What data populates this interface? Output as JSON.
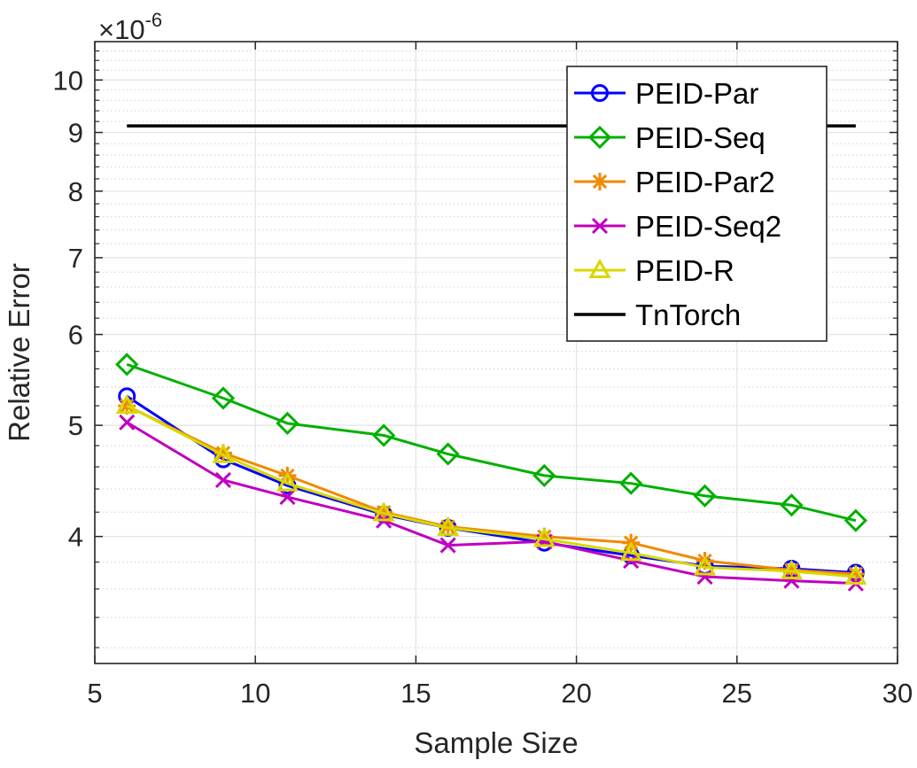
{
  "chart_data": {
    "type": "line",
    "xlabel": "Sample Size",
    "ylabel": "Relative Error",
    "yscale": "log",
    "exponent_base": "×10",
    "exponent_power": "-6",
    "xlim": [
      5,
      30
    ],
    "ylim": [
      3.1,
      10.8
    ],
    "xticks": [
      5,
      10,
      15,
      20,
      25,
      30
    ],
    "yticks": [
      4,
      5,
      6,
      7,
      8,
      9,
      10
    ],
    "grid": true,
    "legend_position": "top-right",
    "series": [
      {
        "name": "PEID-Par",
        "color": "#0000ff",
        "marker": "circle",
        "x": [
          6,
          9,
          11,
          14,
          16,
          19,
          21.7,
          24,
          26.7,
          28.7
        ],
        "y": [
          5.3,
          4.67,
          4.43,
          4.18,
          4.07,
          3.95,
          3.85,
          3.77,
          3.75,
          3.72
        ]
      },
      {
        "name": "PEID-Seq",
        "color": "#00b000",
        "marker": "diamond",
        "x": [
          6,
          9,
          11,
          14,
          16,
          19,
          21.7,
          24,
          26.7,
          28.7
        ],
        "y": [
          5.65,
          5.28,
          5.02,
          4.9,
          4.72,
          4.52,
          4.45,
          4.34,
          4.26,
          4.13
        ]
      },
      {
        "name": "PEID-Par2",
        "color": "#f08a00",
        "marker": "asterisk",
        "x": [
          6,
          9,
          11,
          14,
          16,
          19,
          21.7,
          24,
          26.7,
          28.7
        ],
        "y": [
          5.2,
          4.73,
          4.52,
          4.2,
          4.08,
          4.0,
          3.95,
          3.81,
          3.74,
          3.71
        ]
      },
      {
        "name": "PEID-Seq2",
        "color": "#c000c0",
        "marker": "x",
        "x": [
          6,
          9,
          11,
          14,
          16,
          19,
          21.7,
          24,
          26.7,
          28.7
        ],
        "y": [
          5.03,
          4.48,
          4.33,
          4.13,
          3.93,
          3.96,
          3.81,
          3.69,
          3.66,
          3.64
        ]
      },
      {
        "name": "PEID-R",
        "color": "#d8d800",
        "marker": "triangle",
        "x": [
          6,
          9,
          11,
          14,
          16,
          19,
          21.7,
          24,
          26.7,
          28.7
        ],
        "y": [
          5.2,
          4.71,
          4.45,
          4.19,
          4.07,
          3.98,
          3.87,
          3.76,
          3.73,
          3.69
        ]
      },
      {
        "name": "TnTorch",
        "color": "#000000",
        "marker": "none",
        "x": [
          6,
          28.7
        ],
        "y": [
          9.12,
          9.12
        ]
      }
    ]
  }
}
